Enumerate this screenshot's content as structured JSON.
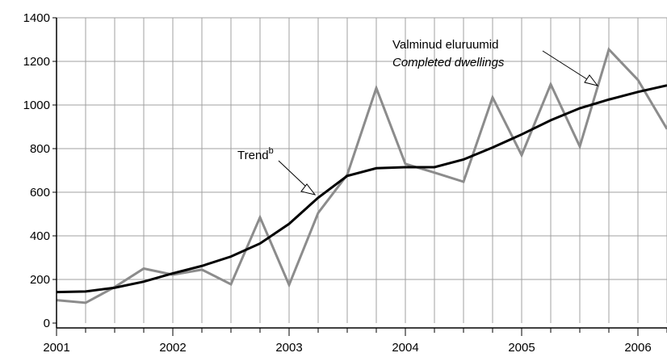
{
  "chart_data": {
    "type": "line",
    "ylim": [
      0,
      1400
    ],
    "yticks": [
      0,
      200,
      400,
      600,
      800,
      1000,
      1200,
      1400
    ],
    "x_tick_labels": [
      "2001",
      "2002",
      "2003",
      "2004",
      "2005",
      "2006"
    ],
    "quarters_per_year": 4,
    "grid": "vertical and horizontal",
    "series": [
      {
        "name": "Valminud eluruumid / Completed dwellings",
        "color": "#8c8c8c",
        "values": [
          105,
          93,
          165,
          250,
          222,
          245,
          178,
          485,
          175,
          505,
          680,
          1078,
          730,
          690,
          648,
          1035,
          770,
          1095,
          810,
          1255,
          1115,
          890
        ]
      },
      {
        "name": "Trend",
        "color": "#000000",
        "values": [
          142,
          145,
          162,
          190,
          228,
          262,
          305,
          365,
          455,
          575,
          675,
          710,
          715,
          715,
          750,
          805,
          865,
          930,
          985,
          1025,
          1060,
          1090
        ]
      }
    ],
    "annotations": [
      {
        "line1": "Valminud eluruumid",
        "line2": "Completed dwellings",
        "points_to": "series-0"
      },
      {
        "text": "Trend",
        "superscript": "b",
        "points_to": "series-1"
      }
    ]
  }
}
